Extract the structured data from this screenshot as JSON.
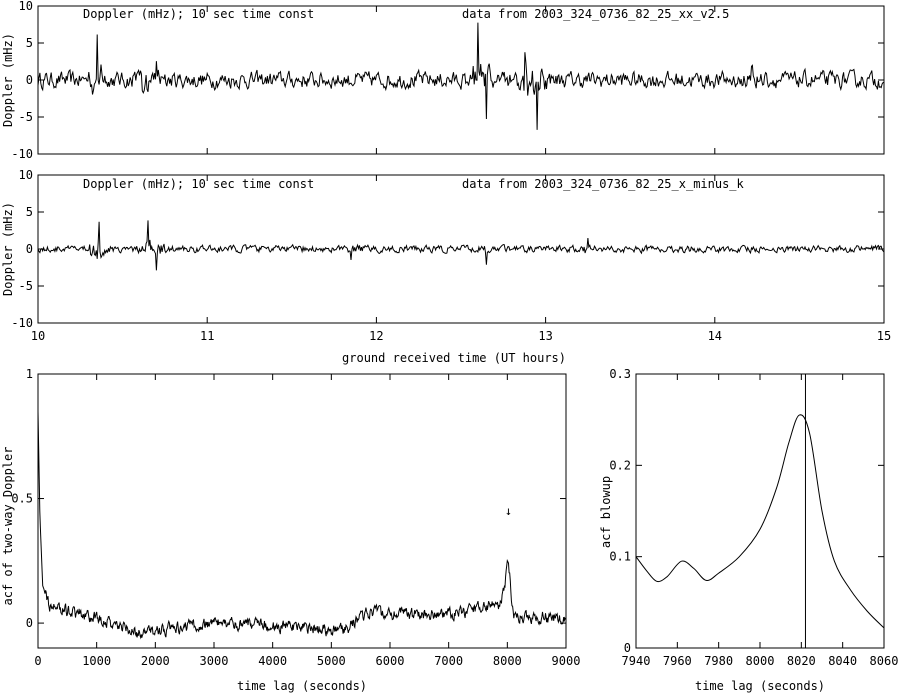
{
  "chart_data": [
    {
      "type": "line",
      "panel": "top",
      "title": "Doppler (mHz); 10 sec time const",
      "annotation": "data from 2003_324_0736_82_25_xx_v2.5",
      "ylabel": "Doppler (mHz)",
      "xlim": [
        10,
        15
      ],
      "ylim": [
        -10,
        10
      ],
      "yticks": [
        -10,
        -5,
        0,
        5,
        10
      ],
      "xticks": [
        10,
        11,
        12,
        13,
        14,
        15
      ],
      "xtick_labels_shown": false,
      "series": [
        {
          "noise_amplitude_mHz": 1.2,
          "spikes": [
            {
              "x": 10.35,
              "y": 6.5
            },
            {
              "x": 10.62,
              "y": -3.5
            },
            {
              "x": 10.7,
              "y": 3.5
            },
            {
              "x": 12.6,
              "y": 7.5
            },
            {
              "x": 12.65,
              "y": -5.5
            },
            {
              "x": 12.88,
              "y": 6.5
            },
            {
              "x": 12.95,
              "y": -7.2
            },
            {
              "x": 14.22,
              "y": 4.0
            }
          ]
        }
      ]
    },
    {
      "type": "line",
      "panel": "middle",
      "title": "Doppler (mHz); 10 sec time const",
      "annotation": "data from 2003_324_0736_82_25_x_minus_k",
      "ylabel": "Doppler (mHz)",
      "xlabel": "ground received time (UT hours)",
      "xlim": [
        10,
        15
      ],
      "ylim": [
        -10,
        10
      ],
      "yticks": [
        -10,
        -5,
        0,
        5,
        10
      ],
      "xticks": [
        10,
        11,
        12,
        13,
        14,
        15
      ],
      "xtick_labels": [
        "10",
        "11",
        "12",
        "13",
        "14",
        "15"
      ],
      "series": [
        {
          "noise_amplitude_mHz": 0.5,
          "spikes": [
            {
              "x": 10.36,
              "y": 5.0
            },
            {
              "x": 10.65,
              "y": 3.5
            },
            {
              "x": 10.7,
              "y": -3.0
            },
            {
              "x": 11.85,
              "y": -1.5
            },
            {
              "x": 12.65,
              "y": -1.8
            },
            {
              "x": 13.25,
              "y": 1.5
            }
          ]
        }
      ]
    },
    {
      "type": "line",
      "panel": "bottom-left",
      "ylabel": "acf of two-way Doppler",
      "xlabel": "time lag (seconds)",
      "xlim": [
        0,
        9000
      ],
      "ylim": [
        -0.1,
        1
      ],
      "yticks": [
        0,
        0.5,
        1
      ],
      "ytick_labels": [
        "0",
        "0.5",
        "1"
      ],
      "xticks": [
        0,
        1000,
        2000,
        3000,
        4000,
        5000,
        6000,
        7000,
        8000,
        9000
      ],
      "xtick_labels": [
        "0",
        "1000",
        "2000",
        "3000",
        "4000",
        "5000",
        "6000",
        "7000",
        "8000",
        "9000"
      ],
      "annotation_arrow": {
        "x": 8020,
        "y_from": 0.55,
        "y_to": 0.45,
        "glyph": "↓"
      },
      "series": [
        {
          "baseline": [
            {
              "x": 0,
              "y": 0.85
            },
            {
              "x": 30,
              "y": 0.45
            },
            {
              "x": 80,
              "y": 0.15
            },
            {
              "x": 200,
              "y": 0.07
            },
            {
              "x": 1000,
              "y": 0.02
            },
            {
              "x": 1700,
              "y": -0.04
            },
            {
              "x": 3000,
              "y": 0.0
            },
            {
              "x": 5200,
              "y": -0.03
            },
            {
              "x": 5600,
              "y": 0.04
            },
            {
              "x": 7000,
              "y": 0.03
            },
            {
              "x": 7900,
              "y": 0.08
            },
            {
              "x": 8020,
              "y": 0.25
            },
            {
              "x": 8100,
              "y": 0.03
            },
            {
              "x": 9000,
              "y": 0.02
            }
          ],
          "noise_amplitude": 0.025
        }
      ]
    },
    {
      "type": "line",
      "panel": "bottom-right",
      "ylabel": "acf blowup",
      "xlabel": "time lag (seconds)",
      "xlim": [
        7940,
        8060
      ],
      "ylim": [
        0,
        0.3
      ],
      "yticks": [
        0,
        0.1,
        0.2,
        0.3
      ],
      "ytick_labels": [
        "0",
        "0.1",
        "0.2",
        "0.3"
      ],
      "xticks": [
        7940,
        7960,
        7980,
        8000,
        8020,
        8040,
        8060
      ],
      "xtick_labels": [
        "7940",
        "7960",
        "7980",
        "8000",
        "8020",
        "8040",
        "8060"
      ],
      "vline_x": 8022,
      "series": [
        {
          "points": [
            {
              "x": 7940,
              "y": 0.1
            },
            {
              "x": 7945,
              "y": 0.085
            },
            {
              "x": 7950,
              "y": 0.073
            },
            {
              "x": 7955,
              "y": 0.078
            },
            {
              "x": 7962,
              "y": 0.095
            },
            {
              "x": 7968,
              "y": 0.087
            },
            {
              "x": 7974,
              "y": 0.074
            },
            {
              "x": 7980,
              "y": 0.082
            },
            {
              "x": 7990,
              "y": 0.1
            },
            {
              "x": 8000,
              "y": 0.13
            },
            {
              "x": 8008,
              "y": 0.175
            },
            {
              "x": 8014,
              "y": 0.225
            },
            {
              "x": 8019,
              "y": 0.255
            },
            {
              "x": 8024,
              "y": 0.235
            },
            {
              "x": 8030,
              "y": 0.15
            },
            {
              "x": 8036,
              "y": 0.095
            },
            {
              "x": 8044,
              "y": 0.063
            },
            {
              "x": 8052,
              "y": 0.04
            },
            {
              "x": 8060,
              "y": 0.022
            }
          ]
        }
      ]
    }
  ]
}
